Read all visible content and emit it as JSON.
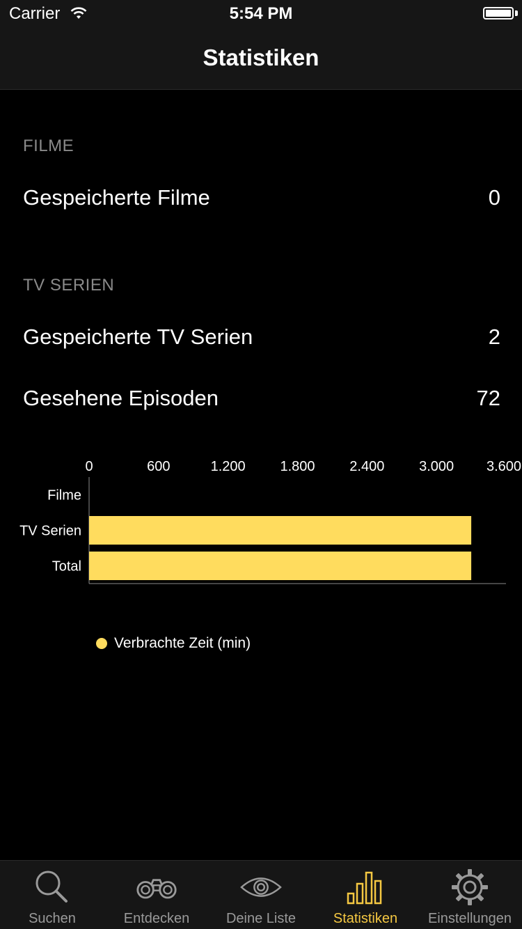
{
  "status_bar": {
    "carrier": "Carrier",
    "time": "5:54 PM"
  },
  "nav": {
    "title": "Statistiken"
  },
  "sections": {
    "movies": {
      "header": "FILME",
      "rows": [
        {
          "label": "Gespeicherte Filme",
          "value": "0"
        }
      ]
    },
    "tv": {
      "header": "TV SERIEN",
      "rows": [
        {
          "label": "Gespeicherte TV Serien",
          "value": "2"
        },
        {
          "label": "Gesehene Episoden",
          "value": "72"
        }
      ]
    }
  },
  "chart_data": {
    "type": "bar",
    "orientation": "horizontal",
    "categories": [
      "Filme",
      "TV Serien",
      "Total"
    ],
    "series": [
      {
        "name": "Verbrachte Zeit (min)",
        "values": [
          0,
          3300,
          3300
        ],
        "color": "#FFDC5E"
      }
    ],
    "xlim": [
      0,
      3600
    ],
    "xticks": [
      "0",
      "600",
      "1.200",
      "1.800",
      "2.400",
      "3.000",
      "3.600"
    ],
    "grid": false,
    "legend_position": "bottom-left"
  },
  "tabbar": {
    "accent_color": "#f5c842",
    "items": [
      {
        "label": "Suchen",
        "icon": "search-icon",
        "active": false
      },
      {
        "label": "Entdecken",
        "icon": "binoculars-icon",
        "active": false
      },
      {
        "label": "Deine Liste",
        "icon": "eye-icon",
        "active": false
      },
      {
        "label": "Statistiken",
        "icon": "bar-chart-icon",
        "active": true
      },
      {
        "label": "Einstellungen",
        "icon": "gear-icon",
        "active": false
      }
    ]
  }
}
